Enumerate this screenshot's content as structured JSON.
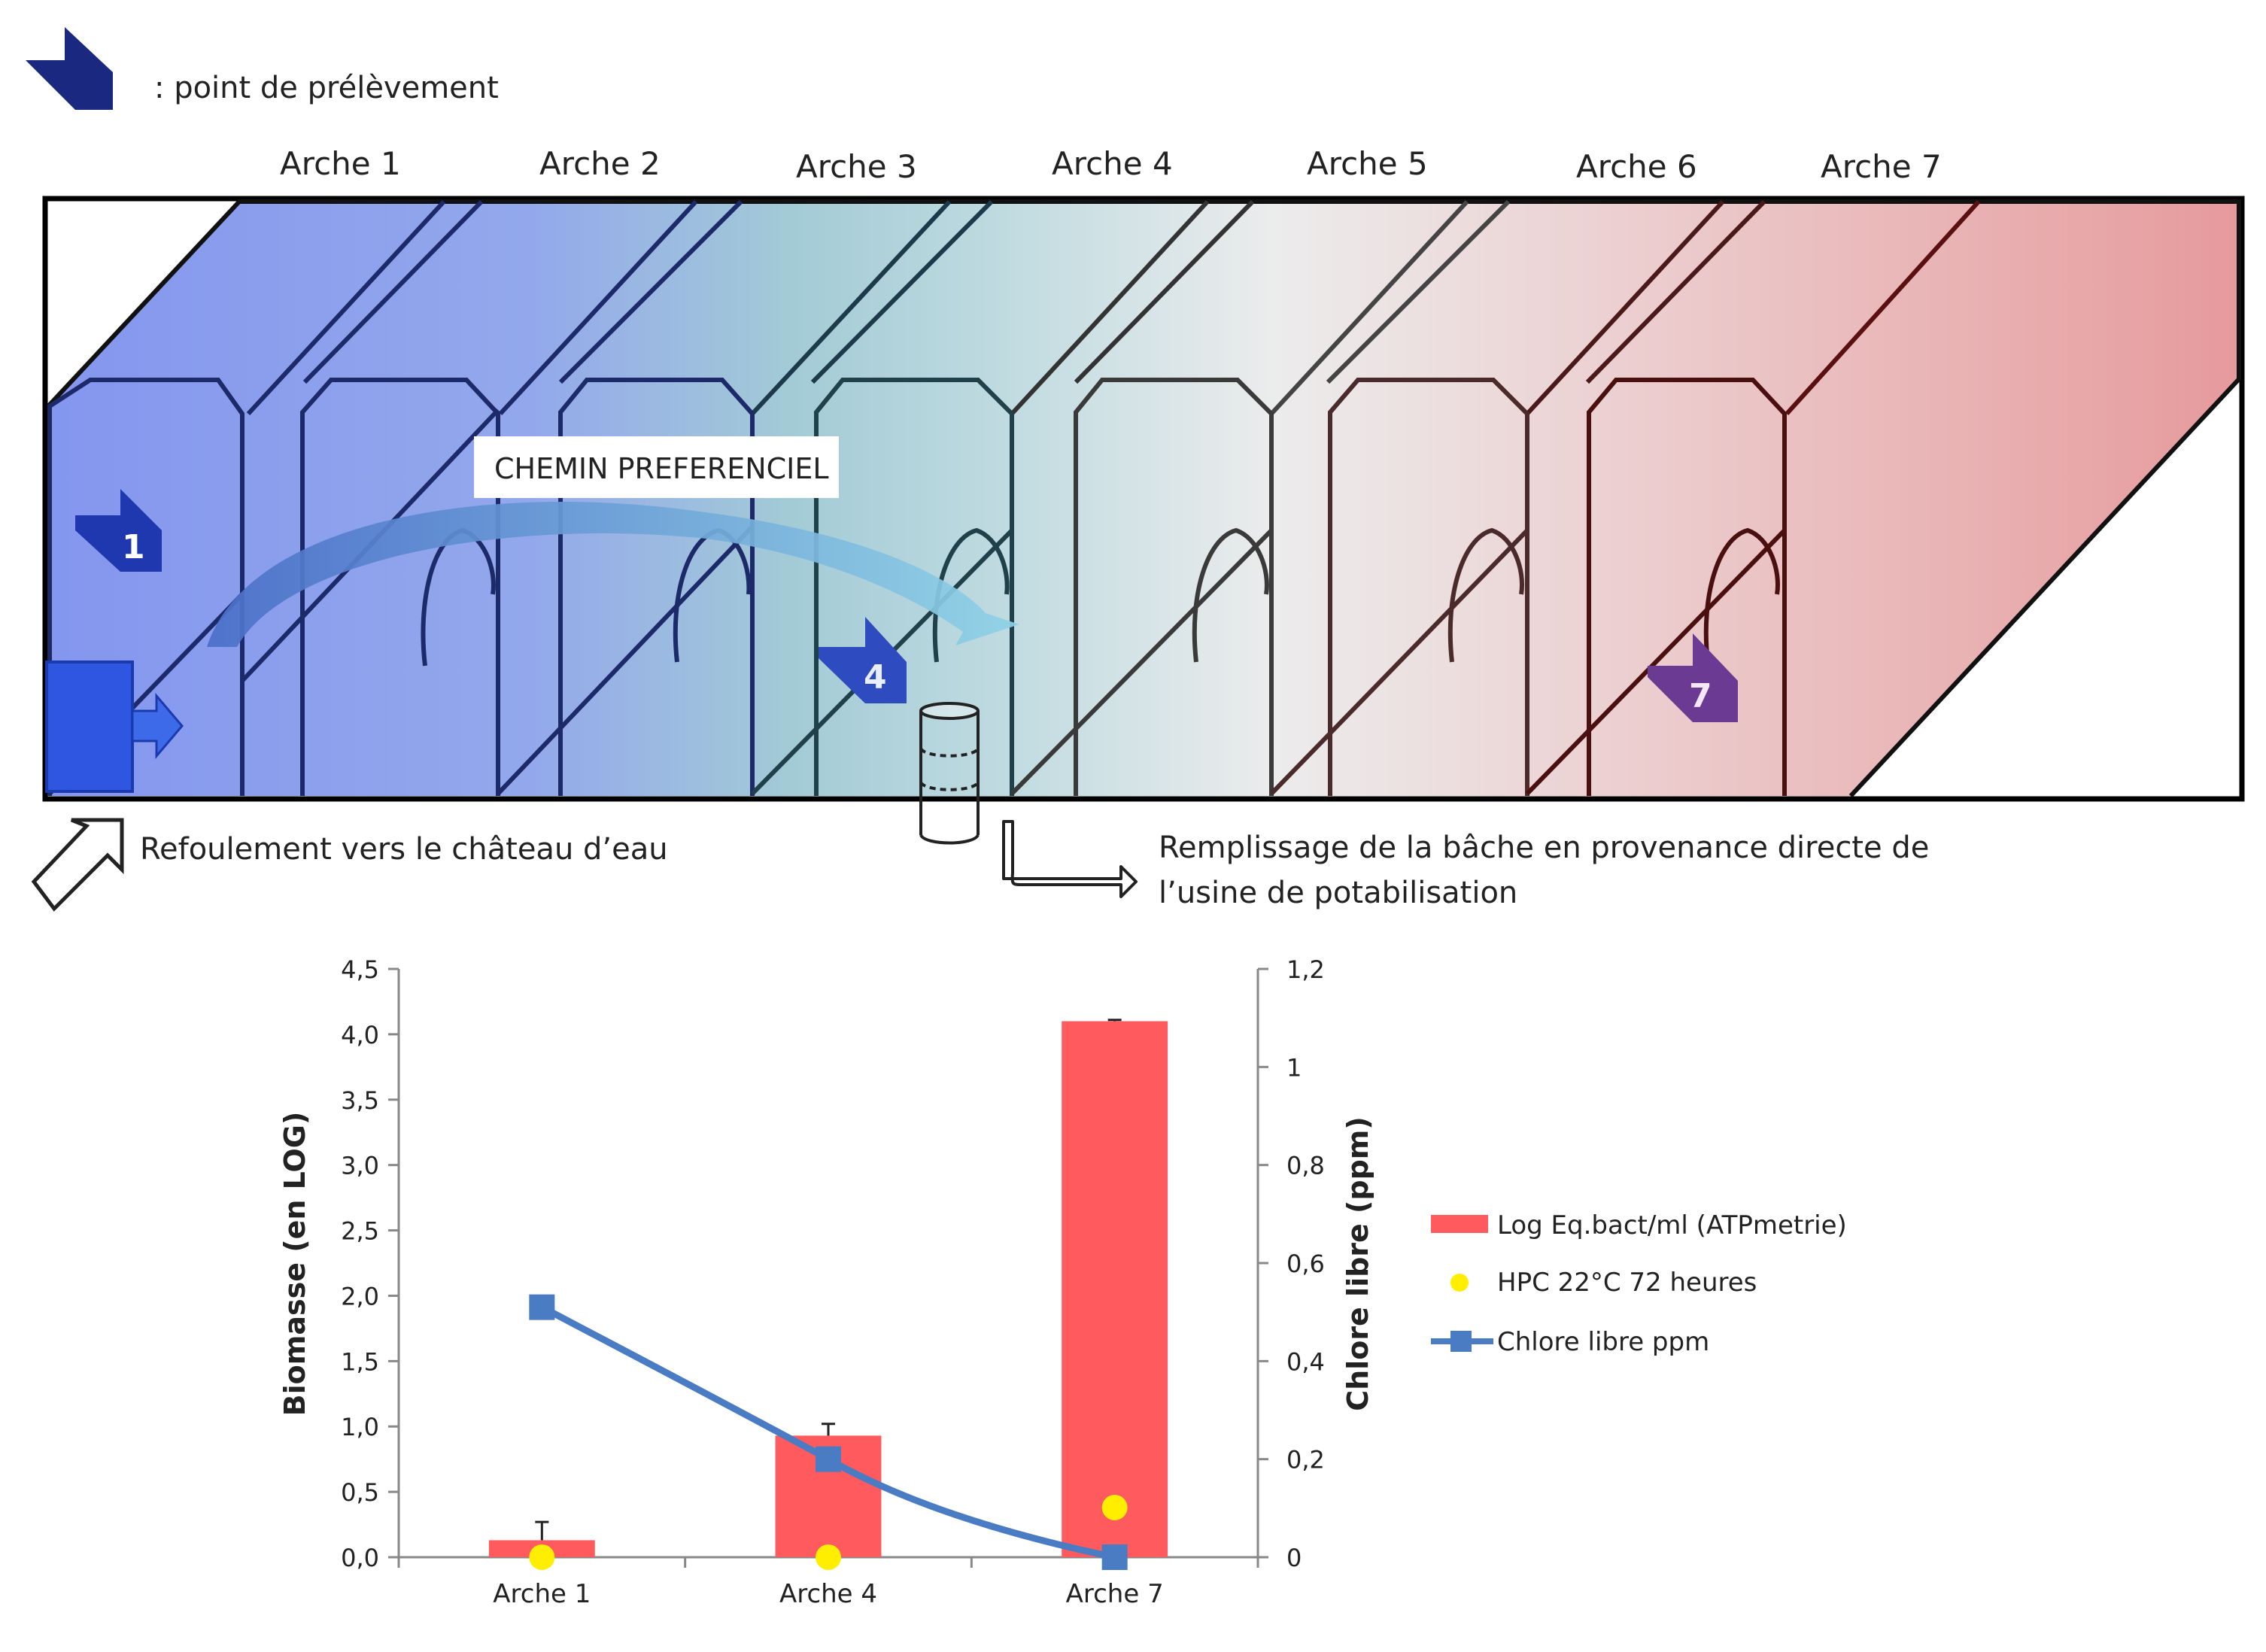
{
  "legend_top": {
    "text": ": point de prélèvement"
  },
  "arches": [
    "Arche 1",
    "Arche 2",
    "Arche 3",
    "Arche 4",
    "Arche 5",
    "Arche 6",
    "Arche 7"
  ],
  "path_label": "CHEMIN PREFERENCIEL",
  "sampling_points": [
    "1",
    "4",
    "7"
  ],
  "outlet_text": "Refoulement vers le château d’eau",
  "inlet_text_line1": "Remplissage de la bâche en provenance directe de",
  "inlet_text_line2": "l’usine de potabilisation",
  "colors": {
    "reservoir_start": "#8c9ff0",
    "reservoir_mid": "#a9d3d8",
    "reservoir_light": "#ececec",
    "reservoir_end": "#e69a9c",
    "bar": "#ff5a5e",
    "hpc": "#ffee00",
    "chlorine": "#4a7cc4",
    "arrow_sample_1": "#2e44b8",
    "arrow_sample_7": "#6b3b94"
  },
  "chart_data": {
    "type": "bar",
    "categories": [
      "Arche 1",
      "Arche 4",
      "Arche 7"
    ],
    "ylabel": "Biomasse (en LOG)",
    "y2label": "Chlore libre (ppm)",
    "ylim": [
      0,
      4.5
    ],
    "y2lim": [
      0,
      1.2
    ],
    "yticks": [
      "0,0",
      "0,5",
      "1,0",
      "1,5",
      "2,0",
      "2,5",
      "3,0",
      "3,5",
      "4,0",
      "4,5"
    ],
    "y2ticks": [
      "0",
      "0,2",
      "0,4",
      "0,6",
      "0,8",
      "1",
      "1,2"
    ],
    "series": [
      {
        "name": "Log Eq.bact/ml (ATPmetrie)",
        "kind": "bar",
        "axis": "left",
        "values": [
          0.13,
          0.93,
          4.1
        ],
        "errors": [
          0.14,
          0.09,
          0.01
        ]
      },
      {
        "name": "HPC 22°C 72 heures",
        "kind": "scatter",
        "axis": "left",
        "values": [
          0.0,
          0.0,
          0.38
        ]
      },
      {
        "name": "Chlore libre ppm",
        "kind": "line",
        "axis": "right",
        "values": [
          0.51,
          0.2,
          0.0
        ]
      }
    ],
    "legend_position": "right"
  }
}
